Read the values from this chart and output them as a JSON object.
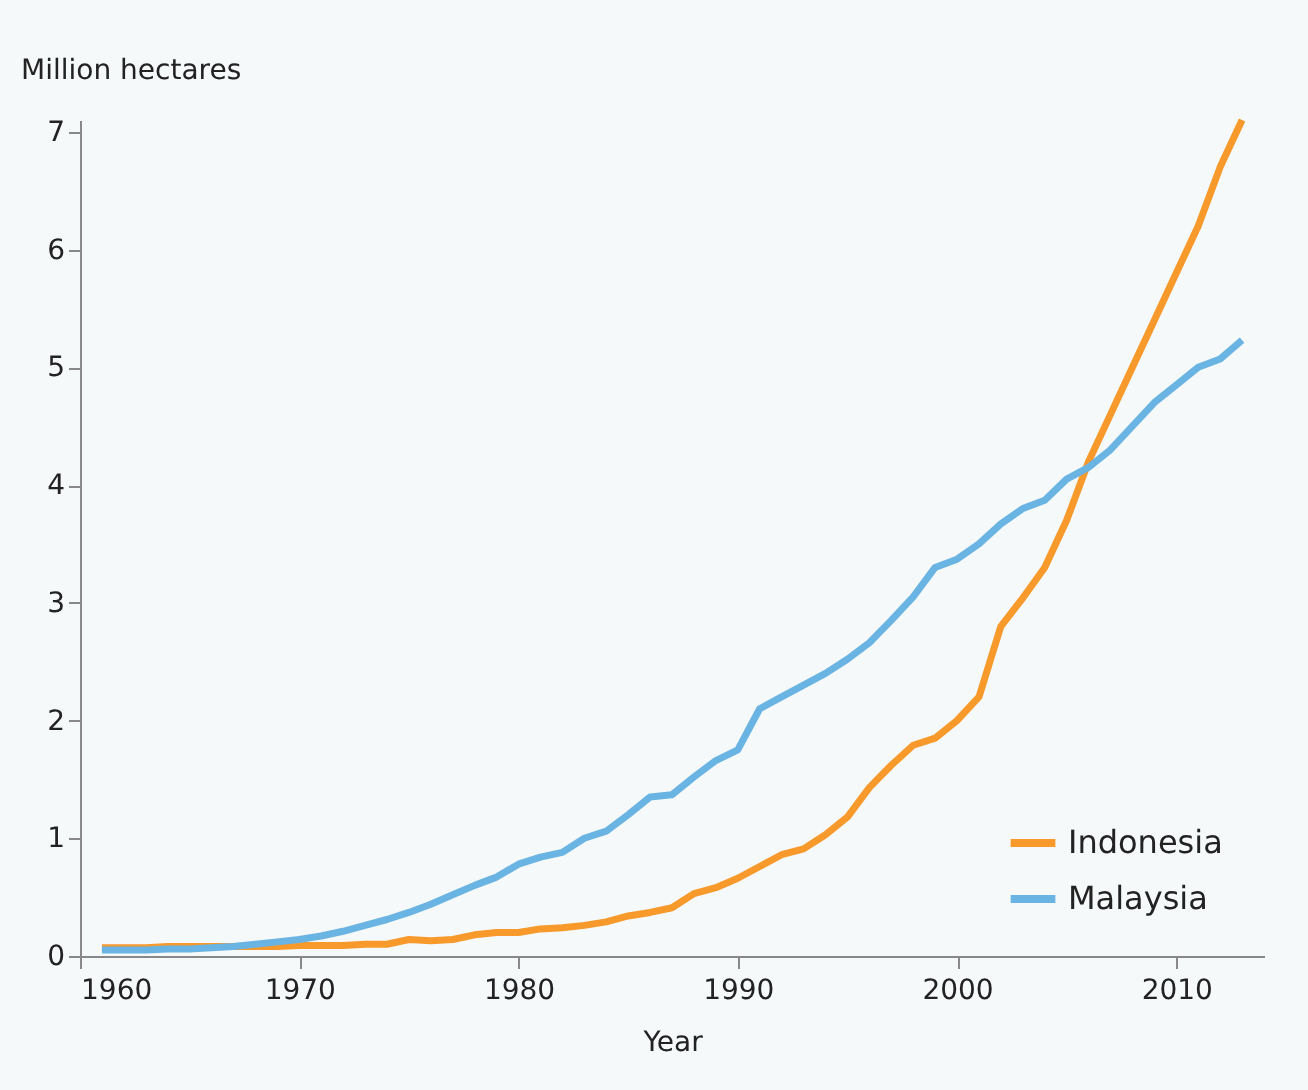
{
  "chart_data": {
    "type": "line",
    "xlabel": "Year",
    "ylabel": "Million hectares",
    "x": [
      1961,
      1962,
      1963,
      1964,
      1965,
      1966,
      1967,
      1968,
      1969,
      1970,
      1971,
      1972,
      1973,
      1974,
      1975,
      1976,
      1977,
      1978,
      1979,
      1980,
      1981,
      1982,
      1983,
      1984,
      1985,
      1986,
      1987,
      1988,
      1989,
      1990,
      1991,
      1992,
      1993,
      1994,
      1995,
      1996,
      1997,
      1998,
      1999,
      2000,
      2001,
      2002,
      2003,
      2004,
      2005,
      2006,
      2007,
      2008,
      2009,
      2010,
      2011,
      2012,
      2013
    ],
    "series": [
      {
        "name": "Indonesia",
        "color": "#f7992b",
        "values": [
          0.07,
          0.07,
          0.07,
          0.08,
          0.08,
          0.08,
          0.08,
          0.08,
          0.08,
          0.09,
          0.09,
          0.09,
          0.1,
          0.1,
          0.14,
          0.13,
          0.14,
          0.18,
          0.2,
          0.2,
          0.23,
          0.24,
          0.26,
          0.29,
          0.34,
          0.37,
          0.41,
          0.53,
          0.58,
          0.66,
          0.76,
          0.86,
          0.91,
          1.03,
          1.18,
          1.43,
          1.62,
          1.79,
          1.85,
          2.0,
          2.2,
          2.8,
          3.04,
          3.3,
          3.7,
          4.2,
          4.6,
          5.0,
          5.4,
          5.8,
          6.2,
          6.7,
          7.1
        ]
      },
      {
        "name": "Malaysia",
        "color": "#6ab4e3",
        "values": [
          0.05,
          0.05,
          0.05,
          0.06,
          0.06,
          0.07,
          0.08,
          0.1,
          0.12,
          0.14,
          0.17,
          0.21,
          0.26,
          0.31,
          0.37,
          0.44,
          0.52,
          0.6,
          0.67,
          0.78,
          0.84,
          0.88,
          1.0,
          1.06,
          1.2,
          1.35,
          1.37,
          1.52,
          1.66,
          1.75,
          2.1,
          2.2,
          2.3,
          2.4,
          2.52,
          2.66,
          2.85,
          3.05,
          3.3,
          3.37,
          3.5,
          3.67,
          3.8,
          3.87,
          4.05,
          4.15,
          4.3,
          4.5,
          4.7,
          4.85,
          5.0,
          5.07,
          5.23
        ]
      }
    ],
    "xlim": [
      1960,
      2014
    ],
    "xticks": [
      1960,
      1970,
      1980,
      1990,
      2000,
      2010
    ],
    "ylim": [
      0,
      7.1
    ],
    "yticks": [
      0,
      1,
      2,
      3,
      4,
      5,
      6,
      7
    ],
    "grid": false,
    "legend": "bottom right",
    "marker": "none",
    "line_style": "solid"
  }
}
